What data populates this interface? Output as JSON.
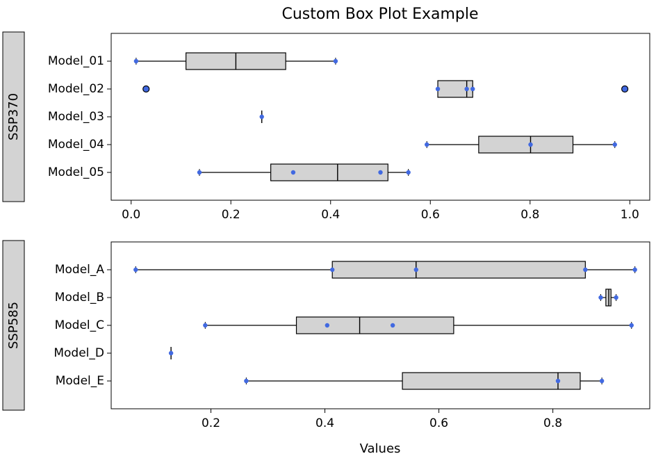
{
  "title": "Custom Box Plot Example",
  "xlabel": "Values",
  "colors": {
    "box_fill": "#d3d3d3",
    "point": "#4169e1",
    "panel_label_fill": "#d3d3d3",
    "outlier_fill": "#4169e1"
  },
  "chart_data": [
    {
      "type": "box",
      "panel_label": "SSP370",
      "xlim": [
        -0.04,
        1.04
      ],
      "xticks": [
        0.0,
        0.2,
        0.4,
        0.6,
        0.8,
        1.0
      ],
      "xtick_labels": [
        "0.0",
        "0.2",
        "0.4",
        "0.6",
        "0.8",
        "1.0"
      ],
      "categories": [
        "Model_01",
        "Model_02",
        "Model_03",
        "Model_04",
        "Model_05"
      ],
      "boxes": [
        {
          "name": "Model_01",
          "whislo": 0.01,
          "q1": 0.11,
          "med": 0.21,
          "q3": 0.31,
          "whishi": 0.41,
          "points": [
            0.01,
            0.41
          ],
          "outliers": []
        },
        {
          "name": "Model_02",
          "whislo": 0.615,
          "q1": 0.615,
          "med": 0.673,
          "q3": 0.685,
          "whishi": 0.685,
          "points": [
            0.615,
            0.673,
            0.685
          ],
          "outliers": [
            0.03,
            0.99
          ]
        },
        {
          "name": "Model_03",
          "whislo": 0.262,
          "q1": 0.262,
          "med": 0.262,
          "q3": 0.262,
          "whishi": 0.262,
          "points": [
            0.262
          ],
          "outliers": []
        },
        {
          "name": "Model_04",
          "whislo": 0.593,
          "q1": 0.697,
          "med": 0.801,
          "q3": 0.886,
          "whishi": 0.97,
          "points": [
            0.593,
            0.801,
            0.97
          ],
          "outliers": []
        },
        {
          "name": "Model_05",
          "whislo": 0.137,
          "q1": 0.28,
          "med": 0.414,
          "q3": 0.515,
          "whishi": 0.556,
          "points": [
            0.137,
            0.325,
            0.5,
            0.556
          ],
          "outliers": []
        }
      ]
    },
    {
      "type": "box",
      "panel_label": "SSP585",
      "xlim": [
        0.025,
        0.97
      ],
      "xticks": [
        0.2,
        0.4,
        0.6,
        0.8
      ],
      "xtick_labels": [
        "0.2",
        "0.4",
        "0.6",
        "0.8"
      ],
      "categories": [
        "Model_A",
        "Model_B",
        "Model_C",
        "Model_D",
        "Model_E"
      ],
      "boxes": [
        {
          "name": "Model_A",
          "whislo": 0.068,
          "q1": 0.413,
          "med": 0.56,
          "q3": 0.857,
          "whishi": 0.944,
          "points": [
            0.068,
            0.413,
            0.56,
            0.857,
            0.944
          ],
          "outliers": []
        },
        {
          "name": "Model_B",
          "whislo": 0.884,
          "q1": 0.893,
          "med": 0.898,
          "q3": 0.902,
          "whishi": 0.911,
          "points": [
            0.884,
            0.911
          ],
          "outliers": []
        },
        {
          "name": "Model_C",
          "whislo": 0.19,
          "q1": 0.35,
          "med": 0.461,
          "q3": 0.626,
          "whishi": 0.938,
          "points": [
            0.19,
            0.404,
            0.519,
            0.938
          ],
          "outliers": []
        },
        {
          "name": "Model_D",
          "whislo": 0.13,
          "q1": 0.13,
          "med": 0.13,
          "q3": 0.13,
          "whishi": 0.13,
          "points": [
            0.13
          ],
          "outliers": []
        },
        {
          "name": "Model_E",
          "whislo": 0.262,
          "q1": 0.536,
          "med": 0.809,
          "q3": 0.848,
          "whishi": 0.886,
          "points": [
            0.262,
            0.809,
            0.886
          ],
          "outliers": []
        }
      ]
    }
  ]
}
